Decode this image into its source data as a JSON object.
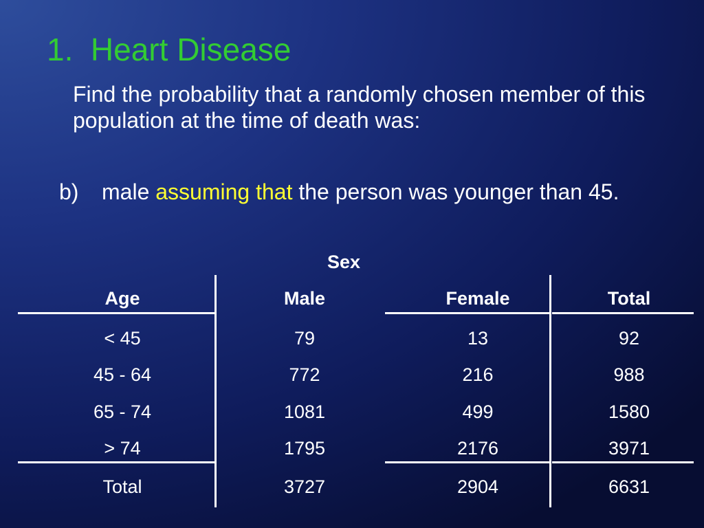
{
  "slide": {
    "title": "1.  Heart Disease",
    "prompt": "Find the probability that a randomly chosen member of this population at the time of death was:",
    "item": {
      "marker": "b)",
      "text_before": "male ",
      "highlight": "assuming that",
      "text_after": " the person was younger than 45."
    }
  },
  "table": {
    "group_header": "Sex",
    "headers": [
      "Age",
      "Male",
      "Female",
      "Total"
    ],
    "rows": [
      [
        "< 45",
        "79",
        "13",
        "92"
      ],
      [
        "45 - 64",
        "772",
        "216",
        "988"
      ],
      [
        "65 - 74",
        "1081",
        "499",
        "1580"
      ],
      [
        "> 74",
        "1795",
        "2176",
        "3971"
      ]
    ],
    "totals": [
      "Total",
      "3727",
      "2904",
      "6631"
    ]
  },
  "colors": {
    "title": "#33cc33",
    "highlight": "#ffff33",
    "text": "#ffffff"
  }
}
